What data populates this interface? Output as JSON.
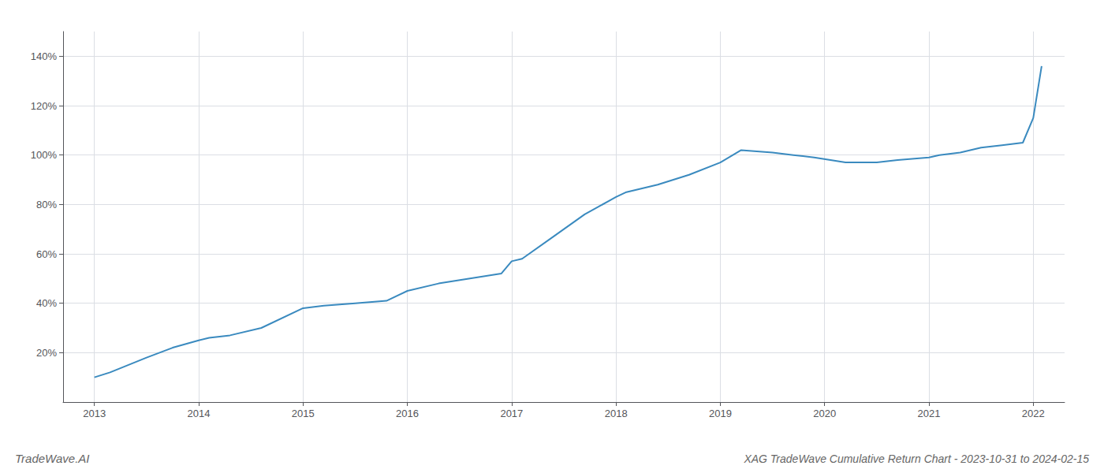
{
  "chart_data": {
    "type": "line",
    "title": "XAG TradeWave Cumulative Return Chart - 2023-10-31 to 2024-02-15",
    "annotations": [
      "TradeWave.AI"
    ],
    "x": [
      2013.0,
      2013.15,
      2013.5,
      2013.75,
      2014.0,
      2014.1,
      2014.3,
      2014.6,
      2015.0,
      2015.2,
      2015.5,
      2015.8,
      2016.0,
      2016.3,
      2016.6,
      2016.9,
      2017.0,
      2017.1,
      2017.4,
      2017.7,
      2018.0,
      2018.1,
      2018.4,
      2018.7,
      2019.0,
      2019.2,
      2019.5,
      2019.7,
      2019.9,
      2020.2,
      2020.5,
      2020.7,
      2021.0,
      2021.1,
      2021.3,
      2021.5,
      2021.7,
      2021.9,
      2022.0,
      2022.08
    ],
    "values": [
      10,
      12,
      18,
      22,
      25,
      26,
      27,
      30,
      38,
      39,
      40,
      41,
      45,
      48,
      50,
      52,
      57,
      58,
      67,
      76,
      83,
      85,
      88,
      92,
      97,
      102,
      101,
      100,
      99,
      97,
      97,
      98,
      99,
      100,
      101,
      103,
      104,
      105,
      115,
      136
    ],
    "color": "#3a8abf",
    "xlim": [
      2012.7,
      2022.3
    ],
    "ylim": [
      0,
      150
    ],
    "xticks": [
      2013,
      2014,
      2015,
      2016,
      2017,
      2018,
      2019,
      2020,
      2021,
      2022
    ],
    "yticks": [
      {
        "value": 20,
        "label": "20%"
      },
      {
        "value": 40,
        "label": "40%"
      },
      {
        "value": 60,
        "label": "60%"
      },
      {
        "value": 80,
        "label": "80%"
      },
      {
        "value": 100,
        "label": "100%"
      },
      {
        "value": 120,
        "label": "120%"
      },
      {
        "value": 140,
        "label": "140%"
      }
    ],
    "grid": true
  }
}
